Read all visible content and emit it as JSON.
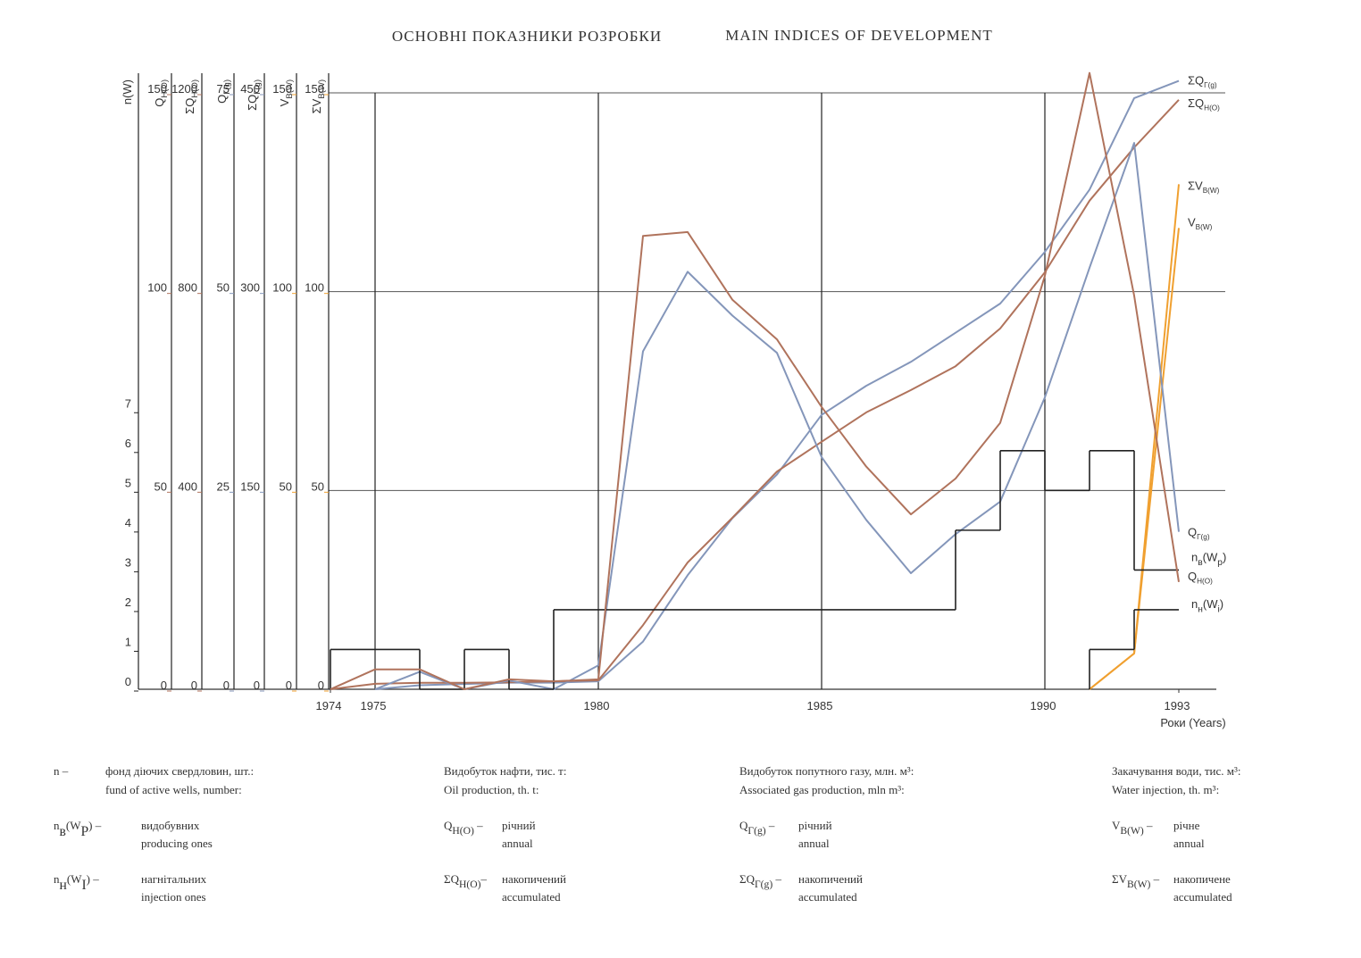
{
  "chart_data": {
    "type": "line",
    "title": "ОСНОВНІ ПОКАЗНИКИ РОЗРОБКИ",
    "subtitle": "MAIN INDICES OF DEVELOPMENT",
    "x_label": "Роки (Years)",
    "x": [
      1974,
      1975,
      1976,
      1977,
      1978,
      1979,
      1980,
      1981,
      1982,
      1983,
      1984,
      1985,
      1986,
      1987,
      1988,
      1989,
      1990,
      1991,
      1992,
      1993
    ],
    "xlim": [
      1974,
      1994
    ],
    "xticks": [
      1974,
      1975,
      1980,
      1985,
      1990,
      1993
    ],
    "grid": true,
    "axes": [
      {
        "label": [
          "n(W)"
        ],
        "color": "#222222",
        "ylim": [
          0,
          15
        ],
        "yticks": [
          0,
          1,
          2,
          3,
          4,
          5,
          6,
          7
        ]
      },
      {
        "label": [
          "Q",
          "Н(О)"
        ],
        "color": "#b0735c",
        "ylim": [
          0,
          150
        ],
        "yticks": [
          0,
          50,
          100,
          150
        ]
      },
      {
        "label": [
          "ΣQ",
          "Н(О)"
        ],
        "color": "#b0735c",
        "ylim": [
          0,
          1200
        ],
        "yticks": [
          0,
          400,
          800,
          1200
        ]
      },
      {
        "label": [
          "Q",
          "Г(g)"
        ],
        "color": "#8496ba",
        "ylim": [
          0,
          75
        ],
        "yticks": [
          0,
          25,
          50,
          75
        ]
      },
      {
        "label": [
          "ΣQ",
          "Г(g)"
        ],
        "color": "#8496ba",
        "ylim": [
          0,
          450
        ],
        "yticks": [
          0,
          150,
          300,
          450
        ]
      },
      {
        "label": [
          "V",
          "В(W)"
        ],
        "color": "#f0a030",
        "ylim": [
          0,
          150
        ],
        "yticks": [
          0,
          50,
          100,
          150
        ]
      },
      {
        "label": [
          "ΣV",
          "В(W)"
        ],
        "color": "#f0a030",
        "ylim": [
          0,
          150
        ],
        "yticks": [
          0,
          50,
          100,
          150
        ]
      }
    ],
    "series": [
      {
        "name": [
          "ΣQ",
          "Г(g)"
        ],
        "color": "#8496ba",
        "axis": 4,
        "draw": "line",
        "values": [
          null,
          0,
          3,
          4,
          5,
          5,
          6,
          36,
          86,
          129,
          162,
          207,
          229,
          247,
          269,
          291,
          330,
          377,
          446,
          459
        ]
      },
      {
        "name": [
          "ΣQ",
          "Н(О)"
        ],
        "color": "#b0735c",
        "axis": 2,
        "draw": "line",
        "values": [
          0,
          11,
          13,
          13,
          14,
          16,
          18,
          129,
          255,
          345,
          438,
          498,
          557,
          602,
          650,
          726,
          839,
          983,
          1090,
          1186
        ]
      },
      {
        "name": [
          "ΣV",
          "В(W)"
        ],
        "color": "#f0a030",
        "axis": 6,
        "draw": "line",
        "values": [
          null,
          null,
          null,
          null,
          null,
          null,
          null,
          null,
          null,
          null,
          null,
          null,
          null,
          null,
          null,
          null,
          null,
          0,
          9,
          127
        ]
      },
      {
        "name": [
          "V",
          "В(W)"
        ],
        "color": "#f0a030",
        "axis": 5,
        "draw": "line",
        "values": [
          null,
          null,
          null,
          null,
          null,
          null,
          null,
          null,
          null,
          null,
          null,
          null,
          null,
          null,
          null,
          null,
          null,
          0,
          9,
          116
        ]
      },
      {
        "name": [
          "Q",
          "Г(g)"
        ],
        "color": "#8496ba",
        "axis": 3,
        "draw": "line",
        "values": [
          null,
          0,
          2.2,
          0,
          1.1,
          0,
          3,
          42.5,
          52.5,
          47,
          42.3,
          29.2,
          21.3,
          14.6,
          19.5,
          23.6,
          36.7,
          53,
          68.7,
          19.8
        ]
      },
      {
        "name": [
          "n",
          "в",
          "(W",
          "р",
          ")"
        ],
        "color": "#222222",
        "axis": 0,
        "draw": "step",
        "values": [
          1,
          1,
          0,
          1,
          0,
          2,
          2,
          2,
          2,
          2,
          2,
          2,
          2,
          2,
          4,
          6,
          5,
          6,
          3,
          null
        ]
      },
      {
        "name": [
          "Q",
          "Н(О)"
        ],
        "color": "#b0735c",
        "axis": 1,
        "draw": "line",
        "values": [
          0,
          5,
          5,
          0,
          2.5,
          2,
          2.5,
          114,
          115,
          98,
          88,
          71,
          56,
          44,
          53,
          67,
          104,
          155,
          99,
          27
        ]
      },
      {
        "name": [
          "n",
          "н",
          "(W",
          "i",
          ")"
        ],
        "color": "#222222",
        "axis": 0,
        "draw": "step",
        "values": [
          null,
          null,
          null,
          null,
          null,
          null,
          null,
          null,
          null,
          null,
          null,
          null,
          null,
          null,
          null,
          null,
          null,
          1,
          2,
          null
        ]
      }
    ]
  },
  "footer": {
    "columns": [
      {
        "symbol": [
          "n –"
        ],
        "heading": [
          "фонд діючих свердловин, шт.:",
          "fund of active wells, number:"
        ],
        "items": [
          {
            "symbol": [
              "n",
              "в",
              "(W",
              "Р",
              ") –"
            ],
            "text": [
              "видобувних",
              "producing ones"
            ]
          },
          {
            "symbol": [
              "n",
              "н",
              "(W",
              "I",
              ") –"
            ],
            "text": [
              "нагнітальних",
              "injection ones"
            ]
          }
        ]
      },
      {
        "heading": [
          "Видобуток нафти, тис. т:",
          "Oil production, th. t:"
        ],
        "items": [
          {
            "symbol": [
              "Q",
              "Н(О)",
              " –"
            ],
            "text": [
              "річний",
              "annual"
            ]
          },
          {
            "symbol": [
              "ΣQ",
              "Н(О)",
              "–"
            ],
            "text": [
              "накопичений",
              "accumulated"
            ]
          }
        ]
      },
      {
        "heading": [
          "Видобуток попутного газу, млн. м³:",
          "Associated gas production, mln m³:"
        ],
        "items": [
          {
            "symbol": [
              "Q",
              "Г(g)",
              " –"
            ],
            "text": [
              "річний",
              "annual"
            ]
          },
          {
            "symbol": [
              "ΣQ",
              "Г(g)",
              " –"
            ],
            "text": [
              "накопичений",
              "accumulated"
            ]
          }
        ]
      },
      {
        "heading": [
          "Закачування води, тис. м³:",
          "Water injection, th. m³:"
        ],
        "items": [
          {
            "symbol": [
              "V",
              "В(W)",
              " –"
            ],
            "text": [
              "річне",
              "annual"
            ]
          },
          {
            "symbol": [
              "ΣV",
              "В(W)",
              " –"
            ],
            "text": [
              "накопичене",
              "accumulated"
            ]
          }
        ]
      }
    ]
  }
}
